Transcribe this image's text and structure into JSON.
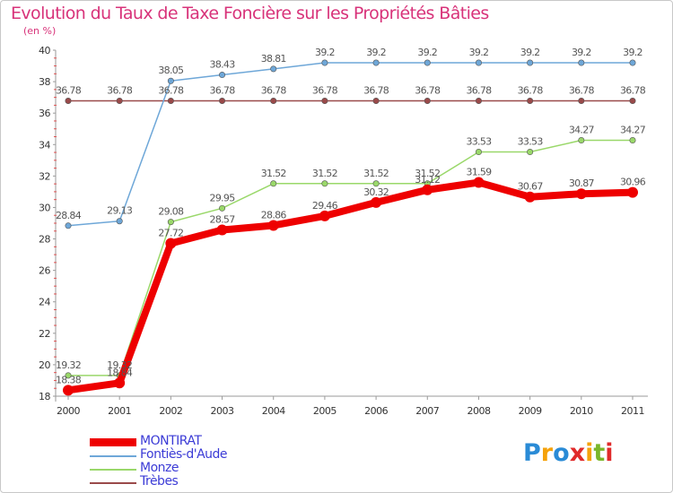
{
  "chart_data": {
    "type": "line",
    "title": "Evolution du Taux de Taxe Foncière sur les Propriétés Bâties",
    "subtitle": "(en %)",
    "xlabel": "",
    "ylabel": "",
    "ylim": [
      18,
      40
    ],
    "yticks": [
      18,
      20,
      22,
      24,
      26,
      28,
      30,
      32,
      34,
      36,
      38,
      40
    ],
    "categories": [
      "2000",
      "2001",
      "2002",
      "2003",
      "2004",
      "2005",
      "2006",
      "2007",
      "2008",
      "2009",
      "2010",
      "2011"
    ],
    "grid": false,
    "legend_position": "bottom-left",
    "series": [
      {
        "name": "MONTIRAT",
        "color": "#ee0000",
        "values": [
          18.38,
          18.84,
          27.72,
          28.57,
          28.86,
          29.46,
          30.32,
          31.12,
          31.59,
          30.67,
          30.87,
          30.96
        ],
        "labels": [
          "18.38",
          "18.84",
          "27.72",
          "28.57",
          "28.86",
          "29.46",
          "30.32",
          "31.12",
          "31.59",
          "30.67",
          "30.87",
          "30.96"
        ]
      },
      {
        "name": "Fontiès-d'Aude",
        "color": "#6ea7d8",
        "values": [
          28.84,
          29.13,
          38.05,
          38.43,
          38.81,
          39.2,
          39.2,
          39.2,
          39.2,
          39.2,
          39.2,
          39.2
        ],
        "labels": [
          "28.84",
          "29.13",
          "38.05",
          "38.43",
          "38.81",
          "39.2",
          "39.2",
          "39.2",
          "39.2",
          "39.2",
          "39.2",
          "39.2"
        ]
      },
      {
        "name": "Monze",
        "color": "#9ad86a",
        "values": [
          19.32,
          19.32,
          29.08,
          29.95,
          31.52,
          31.52,
          31.52,
          31.52,
          33.53,
          33.53,
          34.27,
          34.27
        ],
        "labels": [
          "19.32",
          "19.32",
          "29.08",
          "29.95",
          "31.52",
          "31.52",
          "31.52",
          "31.52",
          "33.53",
          "33.53",
          "34.27",
          "34.27"
        ]
      },
      {
        "name": "Trèbes",
        "color": "#9a4a4a",
        "values": [
          36.78,
          36.78,
          36.78,
          36.78,
          36.78,
          36.78,
          36.78,
          36.78,
          36.78,
          36.78,
          36.78,
          36.78
        ],
        "labels": [
          "36.78",
          "36.78",
          "36.78",
          "36.78",
          "36.78",
          "36.78",
          "36.78",
          "36.78",
          "36.78",
          "36.78",
          "36.78",
          "36.78"
        ]
      }
    ]
  },
  "logo": {
    "letters": [
      "P",
      "r",
      "o",
      "x",
      "i",
      "t",
      "i"
    ]
  }
}
